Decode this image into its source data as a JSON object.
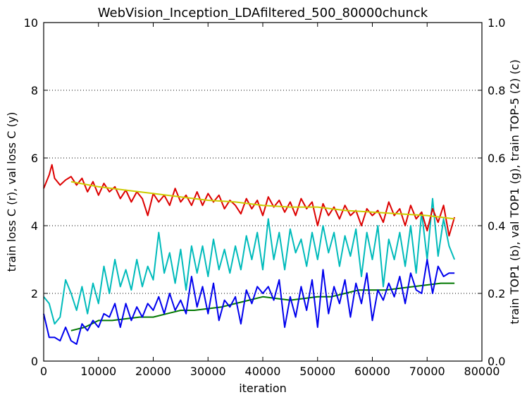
{
  "chart_data": {
    "type": "line",
    "title": "WebVision_Inception_LDAfiltered_500_80000chunck",
    "xlabel": "iteration",
    "ylabel_left": "train loss C (r), val loss C (y)",
    "ylabel_right": "train TOP1 (b), val TOP1 (g), train TOP-5 (2) (c)",
    "xlim": [
      0,
      80000
    ],
    "ylim_left": [
      0,
      10
    ],
    "ylim_right": [
      0,
      1.0
    ],
    "x_ticks": [
      "0",
      "10000",
      "20000",
      "30000",
      "40000",
      "50000",
      "60000",
      "70000",
      "80000"
    ],
    "y_left_ticks": [
      "0",
      "2",
      "4",
      "6",
      "8",
      "10"
    ],
    "y_right_ticks": [
      "0.0",
      "0.2",
      "0.4",
      "0.6",
      "0.8",
      "1.0"
    ],
    "grid": "horizontal dotted",
    "series": [
      {
        "axis": "left",
        "color": "#dd0000",
        "x": [
          0,
          1000,
          1500,
          2000,
          3000,
          4000,
          5000,
          6000,
          7000,
          8000,
          9000,
          10000,
          11000,
          12000,
          13000,
          14000,
          15000,
          16000,
          17000,
          18000,
          19000,
          20000,
          21000,
          22000,
          23000,
          24000,
          25000,
          26000,
          27000,
          28000,
          29000,
          30000,
          31000,
          32000,
          33000,
          34000,
          35000,
          36000,
          37000,
          38000,
          39000,
          40000,
          41000,
          42000,
          43000,
          44000,
          45000,
          46000,
          47000,
          48000,
          49000,
          50000,
          51000,
          52000,
          53000,
          54000,
          55000,
          56000,
          57000,
          58000,
          59000,
          60000,
          61000,
          62000,
          63000,
          64000,
          65000,
          66000,
          67000,
          68000,
          69000,
          70000,
          71000,
          72000,
          73000,
          74000,
          75000
        ],
        "values": [
          5.1,
          5.5,
          5.8,
          5.4,
          5.2,
          5.35,
          5.45,
          5.2,
          5.4,
          5.0,
          5.3,
          4.9,
          5.25,
          5.0,
          5.15,
          4.8,
          5.05,
          4.7,
          5.0,
          4.8,
          4.3,
          4.95,
          4.7,
          4.9,
          4.6,
          5.1,
          4.7,
          4.9,
          4.6,
          5.0,
          4.6,
          4.95,
          4.7,
          4.9,
          4.5,
          4.75,
          4.6,
          4.35,
          4.8,
          4.5,
          4.75,
          4.3,
          4.85,
          4.55,
          4.75,
          4.4,
          4.7,
          4.3,
          4.8,
          4.5,
          4.7,
          4.0,
          4.65,
          4.3,
          4.55,
          4.2,
          4.6,
          4.3,
          4.45,
          4.0,
          4.5,
          4.3,
          4.45,
          4.1,
          4.7,
          4.3,
          4.5,
          4.0,
          4.6,
          4.2,
          4.4,
          3.85,
          4.5,
          4.1,
          4.6,
          3.7,
          4.25
        ]
      },
      {
        "axis": "left",
        "color": "#cccc00",
        "x": [
          5000,
          10000,
          15000,
          20000,
          25000,
          30000,
          35000,
          40000,
          45000,
          50000,
          55000,
          60000,
          65000,
          70000,
          75000
        ],
        "values": [
          5.3,
          5.15,
          5.05,
          4.95,
          4.85,
          4.75,
          4.7,
          4.6,
          4.55,
          4.55,
          4.45,
          4.4,
          4.35,
          4.3,
          4.2
        ]
      },
      {
        "axis": "right",
        "color": "#0000ee",
        "x": [
          0,
          1000,
          2000,
          3000,
          4000,
          5000,
          6000,
          7000,
          8000,
          9000,
          10000,
          11000,
          12000,
          13000,
          14000,
          15000,
          16000,
          17000,
          18000,
          19000,
          20000,
          21000,
          22000,
          23000,
          24000,
          25000,
          26000,
          27000,
          28000,
          29000,
          30000,
          31000,
          32000,
          33000,
          34000,
          35000,
          36000,
          37000,
          38000,
          39000,
          40000,
          41000,
          42000,
          43000,
          44000,
          45000,
          46000,
          47000,
          48000,
          49000,
          50000,
          51000,
          52000,
          53000,
          54000,
          55000,
          56000,
          57000,
          58000,
          59000,
          60000,
          61000,
          62000,
          63000,
          64000,
          65000,
          66000,
          67000,
          68000,
          69000,
          70000,
          71000,
          72000,
          73000,
          74000,
          75000
        ],
        "values": [
          0.14,
          0.07,
          0.07,
          0.06,
          0.1,
          0.06,
          0.05,
          0.11,
          0.09,
          0.12,
          0.1,
          0.14,
          0.13,
          0.17,
          0.1,
          0.17,
          0.12,
          0.16,
          0.13,
          0.17,
          0.15,
          0.19,
          0.14,
          0.2,
          0.15,
          0.18,
          0.14,
          0.25,
          0.16,
          0.22,
          0.14,
          0.23,
          0.12,
          0.18,
          0.16,
          0.19,
          0.11,
          0.21,
          0.17,
          0.22,
          0.2,
          0.22,
          0.18,
          0.24,
          0.1,
          0.19,
          0.13,
          0.22,
          0.15,
          0.24,
          0.1,
          0.27,
          0.14,
          0.22,
          0.17,
          0.24,
          0.13,
          0.23,
          0.17,
          0.26,
          0.12,
          0.21,
          0.18,
          0.23,
          0.19,
          0.25,
          0.17,
          0.26,
          0.21,
          0.2,
          0.3,
          0.2,
          0.28,
          0.25,
          0.26,
          0.26
        ]
      },
      {
        "axis": "right",
        "color": "#007700",
        "x": [
          5000,
          7500,
          10000,
          12500,
          15000,
          17500,
          20000,
          22500,
          25000,
          27500,
          30000,
          32500,
          35000,
          37500,
          40000,
          42500,
          45000,
          47500,
          50000,
          52500,
          55000,
          57500,
          60000,
          62500,
          65000,
          67500,
          70000,
          72500,
          75000
        ],
        "values": [
          0.09,
          0.1,
          0.12,
          0.12,
          0.125,
          0.13,
          0.13,
          0.14,
          0.15,
          0.15,
          0.155,
          0.16,
          0.17,
          0.18,
          0.19,
          0.185,
          0.18,
          0.185,
          0.19,
          0.19,
          0.2,
          0.21,
          0.21,
          0.21,
          0.215,
          0.22,
          0.225,
          0.23,
          0.23
        ]
      },
      {
        "axis": "right",
        "color": "#00bbbb",
        "x": [
          0,
          1000,
          2000,
          3000,
          4000,
          5000,
          6000,
          7000,
          8000,
          9000,
          10000,
          11000,
          12000,
          13000,
          14000,
          15000,
          16000,
          17000,
          18000,
          19000,
          20000,
          21000,
          22000,
          23000,
          24000,
          25000,
          26000,
          27000,
          28000,
          29000,
          30000,
          31000,
          32000,
          33000,
          34000,
          35000,
          36000,
          37000,
          38000,
          39000,
          40000,
          41000,
          42000,
          43000,
          44000,
          45000,
          46000,
          47000,
          48000,
          49000,
          50000,
          51000,
          52000,
          53000,
          54000,
          55000,
          56000,
          57000,
          58000,
          59000,
          60000,
          61000,
          62000,
          63000,
          64000,
          65000,
          66000,
          67000,
          68000,
          69000,
          70000,
          71000,
          72000,
          73000,
          74000,
          75000
        ],
        "values": [
          0.19,
          0.17,
          0.11,
          0.13,
          0.24,
          0.2,
          0.15,
          0.22,
          0.14,
          0.23,
          0.17,
          0.28,
          0.2,
          0.3,
          0.22,
          0.27,
          0.21,
          0.3,
          0.22,
          0.28,
          0.24,
          0.38,
          0.26,
          0.32,
          0.23,
          0.33,
          0.21,
          0.34,
          0.26,
          0.34,
          0.25,
          0.36,
          0.27,
          0.33,
          0.26,
          0.34,
          0.27,
          0.37,
          0.3,
          0.38,
          0.27,
          0.42,
          0.3,
          0.38,
          0.27,
          0.39,
          0.32,
          0.36,
          0.28,
          0.38,
          0.3,
          0.4,
          0.32,
          0.38,
          0.28,
          0.37,
          0.31,
          0.39,
          0.25,
          0.38,
          0.3,
          0.4,
          0.22,
          0.36,
          0.3,
          0.38,
          0.28,
          0.4,
          0.26,
          0.44,
          0.3,
          0.48,
          0.31,
          0.42,
          0.34,
          0.3
        ]
      }
    ]
  }
}
